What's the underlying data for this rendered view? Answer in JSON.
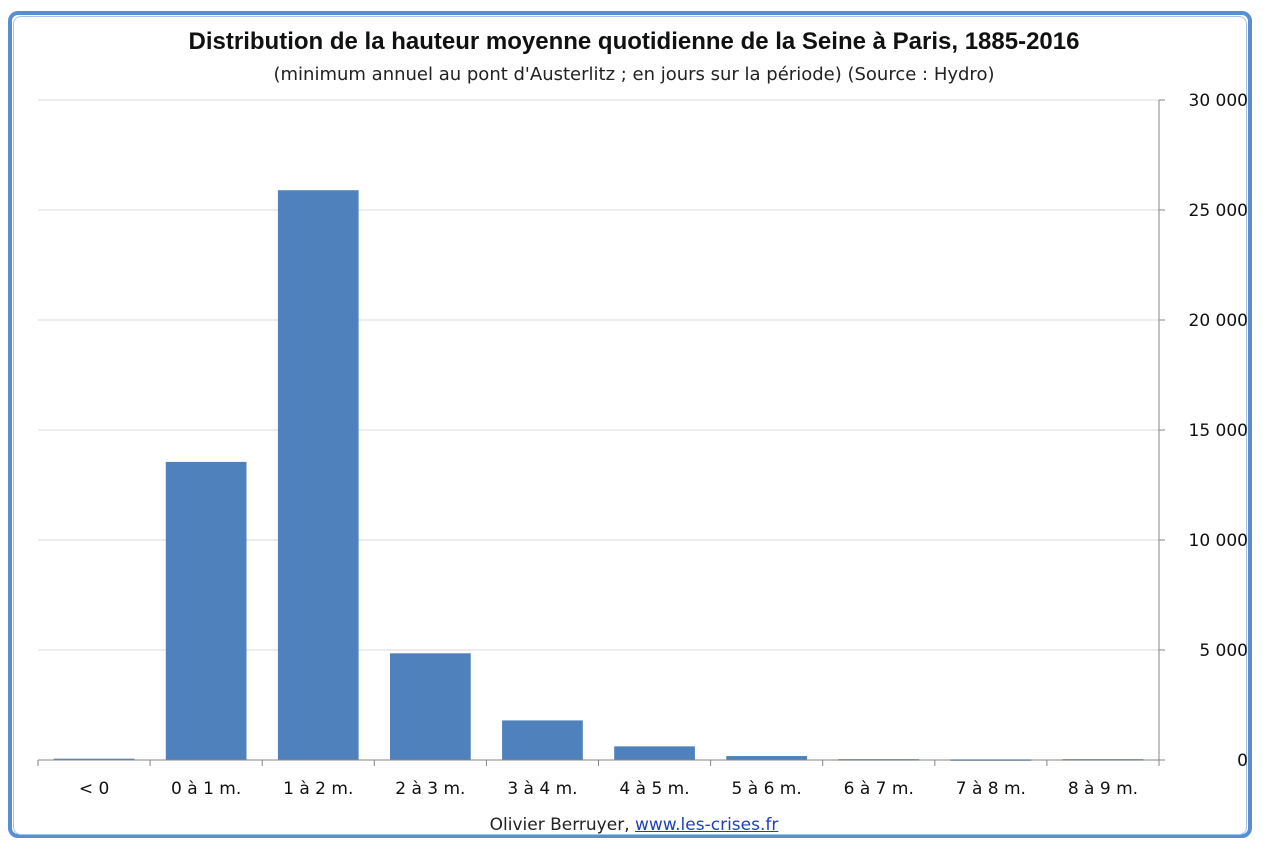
{
  "chart_data": {
    "type": "bar",
    "title": "Distribution de la hauteur moyenne quotidienne de la Seine à Paris, 1885-2016",
    "subtitle": "(minimum annuel au pont d'Austerlitz ; en jours sur la période) (Source : Hydro)",
    "categories": [
      "< 0",
      "0 à 1 m.",
      "1 à 2 m.",
      "2 à 3 m.",
      "3 à 4 m.",
      "4 à 5 m.",
      "5 à 6 m.",
      "6 à 7 m.",
      "7 à 8 m.",
      "8 à 9 m."
    ],
    "values": [
      60,
      13550,
      25900,
      4850,
      1800,
      620,
      180,
      40,
      30,
      40
    ],
    "ylim": [
      0,
      30000
    ],
    "yticks": [
      0,
      5000,
      10000,
      15000,
      20000,
      25000,
      30000
    ],
    "ytick_labels": [
      "0",
      "5 000",
      "10 000",
      "15 000",
      "20 000",
      "25 000",
      "30 000"
    ],
    "yaxis_side": "right",
    "grid": true,
    "bar_color": "#4f81bd"
  },
  "footer": {
    "author": "Olivier Berruyer,",
    "link": "www.les-crises.fr"
  }
}
